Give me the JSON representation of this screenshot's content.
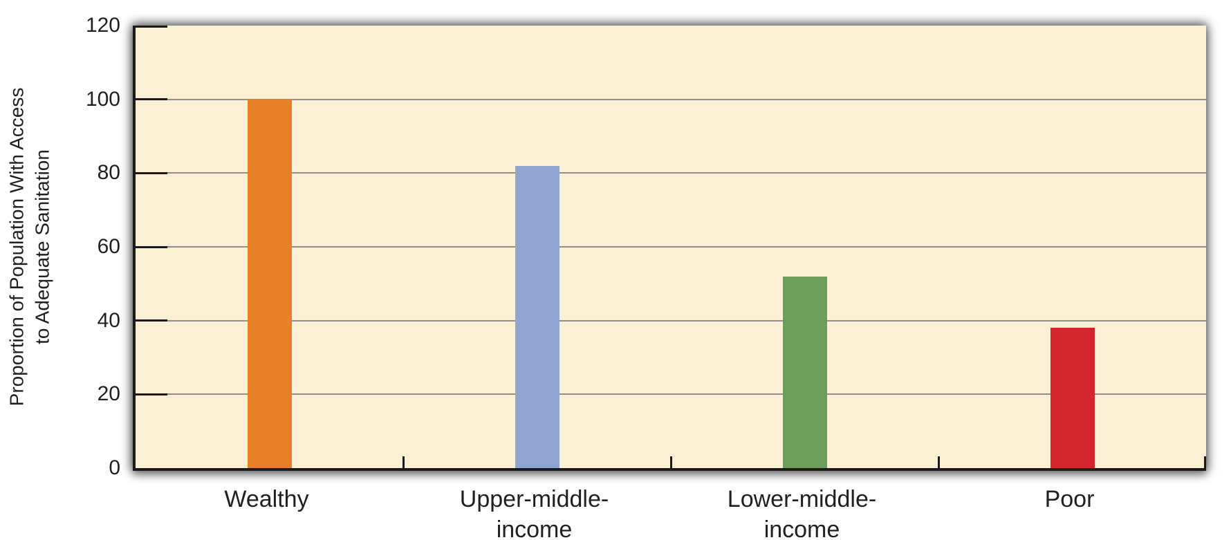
{
  "chart_data": {
    "type": "bar",
    "title": "",
    "categories": [
      "Wealthy",
      "Upper-middle-income",
      "Lower-middle-income",
      "Poor"
    ],
    "category_label_lines": [
      [
        "Wealthy"
      ],
      [
        "Upper-middle-",
        "income"
      ],
      [
        "Lower-middle-",
        "income"
      ],
      [
        "Poor"
      ]
    ],
    "values": [
      100,
      82,
      52,
      38
    ],
    "bar_colors": [
      "#e8802a",
      "#8fa4d1",
      "#6e9d5b",
      "#d2252e"
    ],
    "xlabel": "",
    "ylabel": "Proportion of Population With Access to Adequate Sanitation",
    "ylabel_lines": [
      "Proportion of Population With Access",
      "to Adequate Sanitation"
    ],
    "ylim": [
      0,
      120
    ],
    "yticks": [
      0,
      20,
      40,
      60,
      80,
      100,
      120
    ],
    "grid": "horizontal",
    "legend": "none",
    "colors": {
      "plot_background": "#fbf0d3",
      "page_background": "#ffffff",
      "gridline": "#918f8e",
      "axis": "#1a1a1a",
      "text": "#231f20"
    }
  }
}
